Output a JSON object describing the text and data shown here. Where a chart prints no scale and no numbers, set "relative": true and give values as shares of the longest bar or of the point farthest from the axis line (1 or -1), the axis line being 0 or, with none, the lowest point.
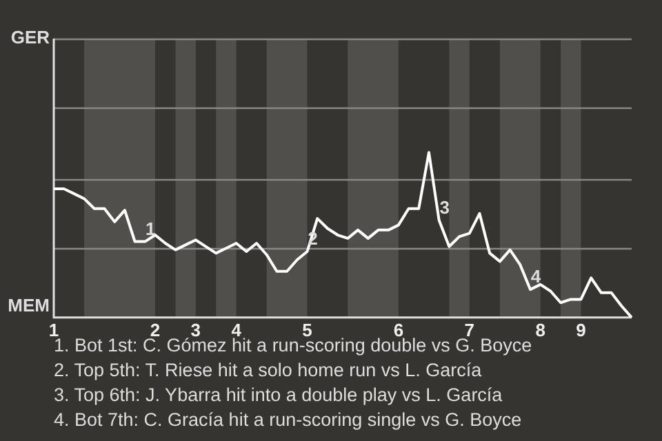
{
  "chart_data": {
    "type": "line",
    "relative": true,
    "categories": [
      "1",
      null,
      null,
      null,
      null,
      null,
      null,
      null,
      null,
      null,
      "2",
      null,
      null,
      null,
      "3",
      null,
      null,
      null,
      "4",
      null,
      null,
      null,
      null,
      null,
      null,
      "5",
      null,
      null,
      null,
      null,
      null,
      null,
      null,
      null,
      "6",
      null,
      null,
      null,
      null,
      null,
      null,
      "7",
      null,
      null,
      null,
      null,
      null,
      null,
      "8",
      null,
      null,
      null,
      "9",
      null,
      null,
      null,
      null,
      null
    ],
    "series": [
      {
        "color": "#ffffff",
        "values": [
          0.78,
          0.78,
          0.75,
          0.72,
          0.66,
          0.66,
          0.58,
          0.65,
          0.46,
          0.46,
          0.5,
          0.45,
          0.41,
          0.44,
          0.47,
          0.43,
          0.39,
          0.42,
          0.45,
          0.4,
          0.45,
          0.38,
          0.28,
          0.28,
          0.35,
          0.4,
          0.6,
          0.54,
          0.5,
          0.48,
          0.53,
          0.48,
          0.53,
          0.53,
          0.56,
          0.66,
          0.66,
          1,
          0.59,
          0.43,
          0.49,
          0.51,
          0.63,
          0.39,
          0.34,
          0.41,
          0.32,
          0.17,
          0.2,
          0.16,
          0.09,
          0.11,
          0.11,
          0.24,
          0.15,
          0.15,
          0.07,
          0
        ]
      }
    ],
    "marker": "none",
    "line_style": "solid",
    "legend": false,
    "ref_lines": [
      {
        "axis": "y",
        "value": 0.42,
        "color": "#8a8886"
      },
      {
        "axis": "y",
        "value": 0.84,
        "color": "#8a8886"
      },
      {
        "axis": "y",
        "value": 1.27,
        "color": "#8a8886"
      },
      {
        "axis": "y",
        "value": 1.69,
        "color": "#8a8886"
      }
    ],
    "annotations": [
      "GER",
      "MEM",
      {
        "text": "1",
        "y": 0.46
      },
      {
        "text": "2",
        "y": 0.4
      },
      {
        "text": "3",
        "y": 0.59
      },
      {
        "text": "4",
        "y": 0.17
      },
      "1. Bot 1st: C. Gómez hit a run-scoring double vs G. Boyce",
      "2. Top 5th: T. Riese hit a solo home run vs L. García",
      "3. Top 6th: J. Ybarra hit into a double play vs L. García",
      "4. Bot 7th: C. Gracía hit a run-scoring single vs G. Boyce"
    ]
  }
}
